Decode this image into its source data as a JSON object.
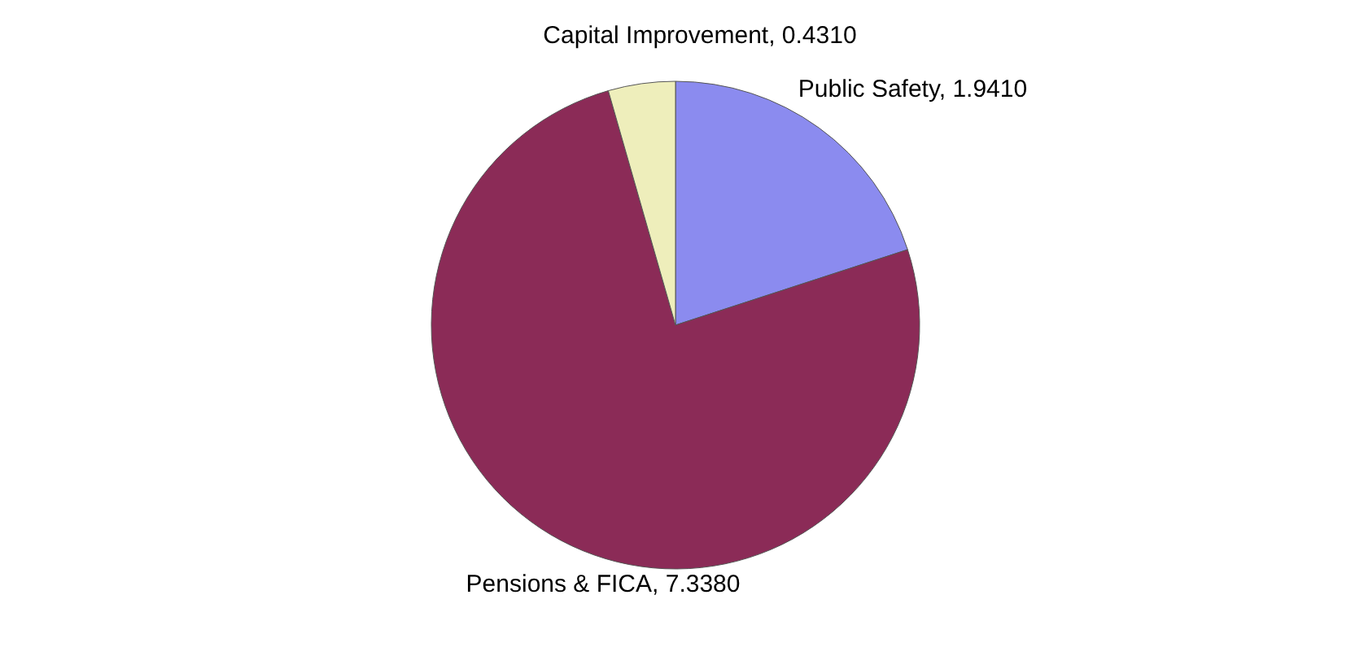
{
  "chart_data": {
    "type": "pie",
    "categories": [
      "Public Safety",
      "Pensions & FICA",
      "Capital Improvement"
    ],
    "values": [
      1.941,
      7.338,
      0.431
    ],
    "value_labels": [
      "1.9410",
      "7.3380",
      "0.4310"
    ],
    "colors": [
      "#8b8bef",
      "#8b2b57",
      "#eeeebb"
    ],
    "legend": false
  }
}
